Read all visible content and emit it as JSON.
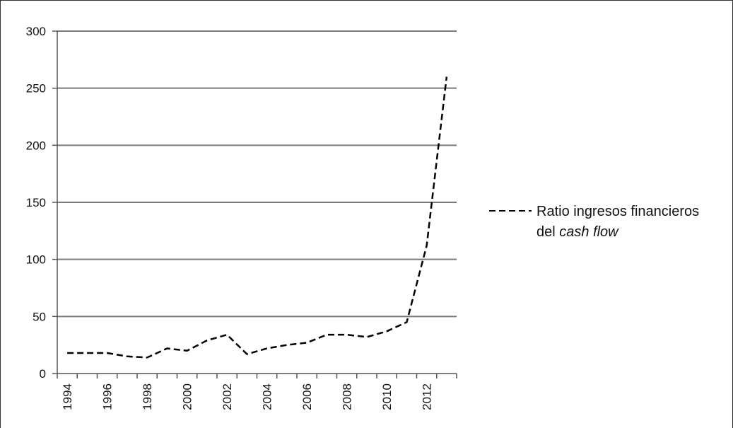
{
  "chart_data": {
    "type": "line",
    "title": "",
    "xlabel": "",
    "ylabel": "",
    "ylim": [
      0,
      300
    ],
    "yticks": [
      0,
      50,
      100,
      150,
      200,
      250,
      300
    ],
    "x": [
      1994,
      1995,
      1996,
      1997,
      1998,
      1999,
      2000,
      2001,
      2002,
      2003,
      2004,
      2005,
      2006,
      2007,
      2008,
      2009,
      2010,
      2011,
      2012,
      2013
    ],
    "xtick_labels": [
      "1994",
      "1996",
      "1998",
      "2000",
      "2002",
      "2004",
      "2006",
      "2008",
      "2010",
      "2012"
    ],
    "grid": true,
    "legend_position": "right",
    "series": [
      {
        "name_part1": "Ratio ingresos financieros",
        "name_part2_plain": "del ",
        "name_part2_italic": "cash flow",
        "line_style": "dashed",
        "color": "#000000",
        "values": [
          18,
          18,
          18,
          15,
          14,
          22,
          20,
          29,
          34,
          17,
          22,
          25,
          27,
          34,
          34,
          32,
          37,
          45,
          112,
          260
        ]
      }
    ]
  }
}
